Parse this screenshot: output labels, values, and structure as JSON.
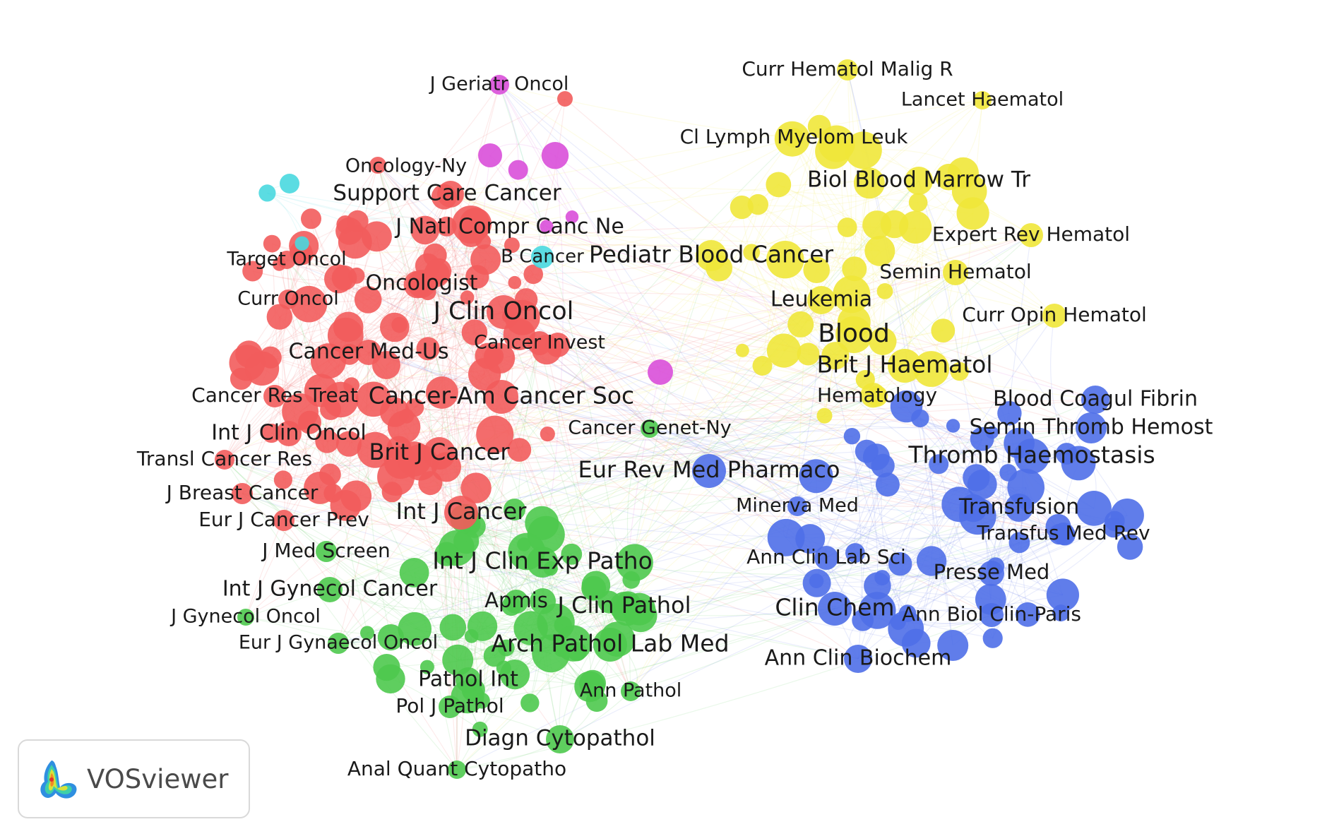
{
  "clusters": [
    {
      "id": 1,
      "color": "#f25c5c"
    },
    {
      "id": 2,
      "color": "#4ec94e"
    },
    {
      "id": 3,
      "color": "#4f6fe8"
    },
    {
      "id": 4,
      "color": "#efe73a"
    },
    {
      "id": 5,
      "color": "#d94fd9"
    },
    {
      "id": 6,
      "color": "#49d8df"
    }
  ],
  "labels": [
    {
      "text": "J Geriatr Oncol",
      "cluster": 5
    },
    {
      "text": "Oncology-Ny",
      "cluster": 1
    },
    {
      "text": "Support Care Cancer",
      "cluster": 1
    },
    {
      "text": "J Natl Compr Canc Ne",
      "cluster": 1
    },
    {
      "text": "Target Oncol",
      "cluster": 1
    },
    {
      "text": "B Cancer",
      "cluster": 6
    },
    {
      "text": "Oncologist",
      "cluster": 1
    },
    {
      "text": "Curr Oncol",
      "cluster": 1
    },
    {
      "text": "J Clin Oncol",
      "cluster": 1
    },
    {
      "text": "Cancer Invest",
      "cluster": 1
    },
    {
      "text": "Cancer Med-Us",
      "cluster": 1
    },
    {
      "text": "Cancer Res Treat",
      "cluster": 1
    },
    {
      "text": "Cancer-Am Cancer Soc",
      "cluster": 1
    },
    {
      "text": "Int J Clin Oncol",
      "cluster": 1
    },
    {
      "text": "Transl Cancer Res",
      "cluster": 1
    },
    {
      "text": "Brit J Cancer",
      "cluster": 1
    },
    {
      "text": "J Breast Cancer",
      "cluster": 1
    },
    {
      "text": "Eur J Cancer Prev",
      "cluster": 1
    },
    {
      "text": "Int J Cancer",
      "cluster": 1
    },
    {
      "text": "Cancer Genet-Ny",
      "cluster": 2
    },
    {
      "text": "Eur Rev Med Pharmaco",
      "cluster": 3
    },
    {
      "text": "J Med Screen",
      "cluster": 2
    },
    {
      "text": "Int J Clin Exp Patho",
      "cluster": 2
    },
    {
      "text": "Int J Gynecol Cancer",
      "cluster": 2
    },
    {
      "text": "J Gynecol Oncol",
      "cluster": 2
    },
    {
      "text": "Apmis",
      "cluster": 2
    },
    {
      "text": "J Clin Pathol",
      "cluster": 2
    },
    {
      "text": "Eur J Gynaecol Oncol",
      "cluster": 2
    },
    {
      "text": "Arch Pathol Lab Med",
      "cluster": 2
    },
    {
      "text": "Pathol Int",
      "cluster": 2
    },
    {
      "text": "Ann Pathol",
      "cluster": 2
    },
    {
      "text": "Pol J Pathol",
      "cluster": 2
    },
    {
      "text": "Diagn Cytopathol",
      "cluster": 2
    },
    {
      "text": "Anal Quant Cytopatho",
      "cluster": 2
    },
    {
      "text": "Curr Hematol Malig R",
      "cluster": 4
    },
    {
      "text": "Lancet Haematol",
      "cluster": 4
    },
    {
      "text": "Cl Lymph Myelom Leuk",
      "cluster": 4
    },
    {
      "text": "Biol Blood Marrow Tr",
      "cluster": 4
    },
    {
      "text": "Expert Rev Hematol",
      "cluster": 4
    },
    {
      "text": "Pediatr Blood Cancer",
      "cluster": 4
    },
    {
      "text": "Semin Hematol",
      "cluster": 4
    },
    {
      "text": "Leukemia",
      "cluster": 4
    },
    {
      "text": "Curr Opin Hematol",
      "cluster": 4
    },
    {
      "text": "Blood",
      "cluster": 4
    },
    {
      "text": "Brit J Haematol",
      "cluster": 4
    },
    {
      "text": "Hematology",
      "cluster": 4
    },
    {
      "text": "Blood Coagul Fibrin",
      "cluster": 3
    },
    {
      "text": "Semin Thromb Hemost",
      "cluster": 3
    },
    {
      "text": "Thromb Haemostasis",
      "cluster": 3
    },
    {
      "text": "Minerva Med",
      "cluster": 3
    },
    {
      "text": "Transfusion",
      "cluster": 3
    },
    {
      "text": "Transfus Med Rev",
      "cluster": 3
    },
    {
      "text": "Ann Clin Lab Sci",
      "cluster": 3
    },
    {
      "text": "Presse Med",
      "cluster": 3
    },
    {
      "text": "Clin Chem",
      "cluster": 3
    },
    {
      "text": "Ann Biol Clin-Paris",
      "cluster": 3
    },
    {
      "text": "Ann Clin Biochem",
      "cluster": 3
    }
  ],
  "logo": {
    "text": "VOSviewer",
    "icon": "vosviewer-logo-icon"
  }
}
